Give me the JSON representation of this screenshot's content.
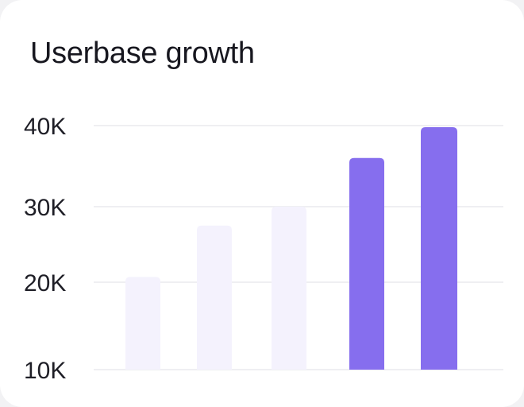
{
  "chart_data": {
    "type": "bar",
    "title": "Userbase growth",
    "xlabel": "",
    "ylabel": "",
    "categories": [
      "",
      "",
      "",
      "",
      ""
    ],
    "values": [
      20700,
      27500,
      30000,
      36000,
      39800
    ],
    "y_ticks": [
      {
        "value": 40000,
        "label": "40K"
      },
      {
        "value": 30000,
        "label": "30K"
      },
      {
        "value": 20000,
        "label": "20K"
      },
      {
        "value": 10000,
        "label": "10K"
      }
    ],
    "ylim": [
      10000,
      40000
    ],
    "grid": true,
    "highlighted": [
      false,
      false,
      false,
      true,
      true
    ],
    "colors": {
      "muted": "#f4f2fd",
      "highlight": "#866eee",
      "grid": "#efeff2"
    }
  }
}
